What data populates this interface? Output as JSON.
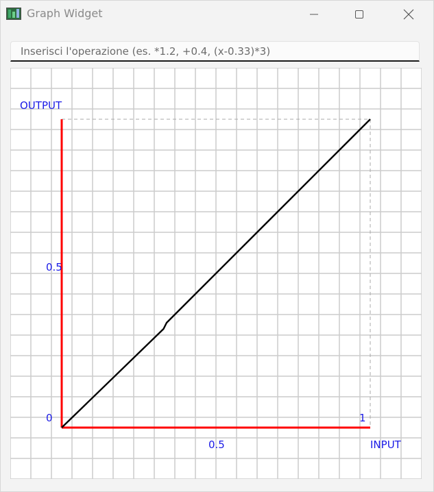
{
  "window": {
    "title": "Graph Widget",
    "controls": [
      "minimize",
      "maximize",
      "close"
    ]
  },
  "operation_input": {
    "value": "",
    "placeholder": "Inserisci l'operazione (es. *1.2, +0.4, (x-0.33)*3)"
  },
  "graph": {
    "x_axis_name": "INPUT",
    "y_axis_name": "OUTPUT",
    "x_tick_labels": [
      "0.5",
      "1"
    ],
    "y_tick_labels": [
      "0",
      "0.5"
    ],
    "axis_color": "#ff0000",
    "label_color": "#1a1ae6",
    "grid_color": "#cccccc",
    "curve_color": "#000000"
  },
  "chart_data": {
    "type": "line",
    "title": "",
    "xlabel": "INPUT",
    "ylabel": "OUTPUT",
    "xlim": [
      0,
      1
    ],
    "ylim": [
      0,
      1
    ],
    "grid": true,
    "series": [
      {
        "x": [
          0,
          0.33,
          0.34,
          1
        ],
        "y": [
          0,
          0.32,
          0.34,
          1
        ]
      }
    ]
  }
}
